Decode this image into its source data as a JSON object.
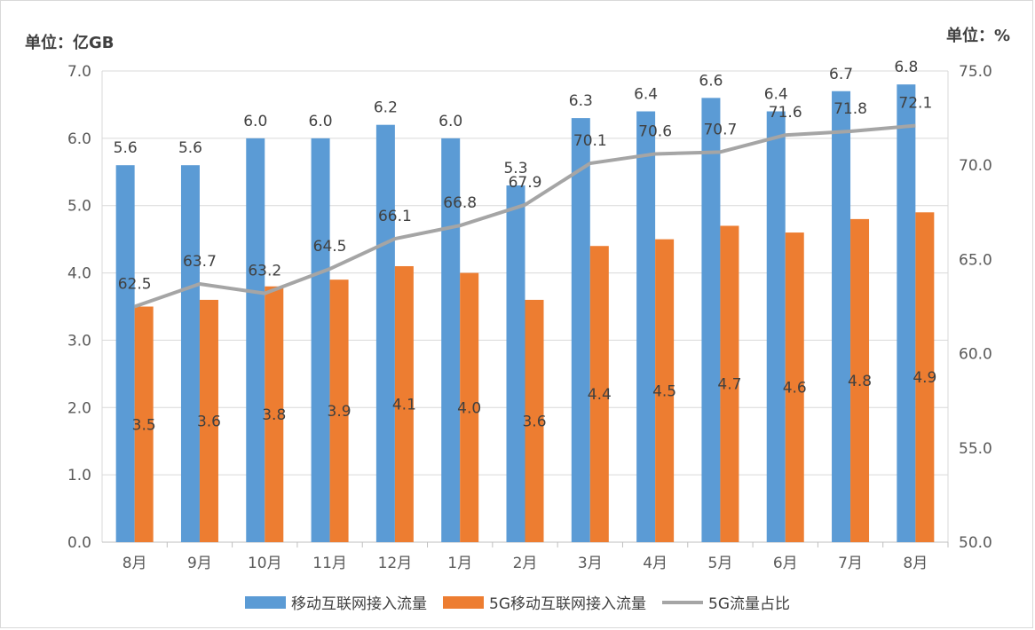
{
  "chart_data": {
    "type": "bar",
    "left_unit": "单位：亿GB",
    "right_unit": "单位：%",
    "categories": [
      "8月",
      "9月",
      "10月",
      "11月",
      "12月",
      "1月",
      "2月",
      "3月",
      "4月",
      "5月",
      "6月",
      "7月",
      "8月"
    ],
    "series": [
      {
        "name": "移动互联网接入流量",
        "kind": "bar",
        "axis": "left",
        "color": "#5b9bd5",
        "values": [
          5.6,
          5.6,
          6.0,
          6.0,
          6.2,
          6.0,
          5.3,
          6.3,
          6.4,
          6.6,
          6.4,
          6.7,
          6.8
        ],
        "labels": [
          "5.6",
          "5.6",
          "6.0",
          "6.0",
          "6.2",
          "6.0",
          "5.3",
          "6.3",
          "6.4",
          "6.6",
          "6.4",
          "6.7",
          "6.8"
        ]
      },
      {
        "name": "5G移动互联网接入流量",
        "kind": "bar",
        "axis": "left",
        "color": "#ed7d31",
        "values": [
          3.5,
          3.6,
          3.8,
          3.9,
          4.1,
          4.0,
          3.6,
          4.4,
          4.5,
          4.7,
          4.6,
          4.8,
          4.9
        ],
        "labels": [
          "3.5",
          "3.6",
          "3.8",
          "3.9",
          "4.1",
          "4.0",
          "3.6",
          "4.4",
          "4.5",
          "4.7",
          "4.6",
          "4.8",
          "4.9"
        ]
      },
      {
        "name": "5G流量占比",
        "kind": "line",
        "axis": "right",
        "color": "#a5a5a5",
        "values": [
          62.5,
          63.7,
          63.2,
          64.5,
          66.1,
          66.8,
          67.9,
          70.1,
          70.6,
          70.7,
          71.6,
          71.8,
          72.1
        ],
        "labels": [
          "62.5",
          "63.7",
          "63.2",
          "64.5",
          "66.1",
          "66.8",
          "67.9",
          "70.1",
          "70.6",
          "70.7",
          "71.6",
          "71.8",
          "72.1"
        ]
      }
    ],
    "y_left": {
      "lim": [
        0,
        7
      ],
      "ticks": [
        "0.0",
        "1.0",
        "2.0",
        "3.0",
        "4.0",
        "5.0",
        "6.0",
        "7.0"
      ]
    },
    "y_right": {
      "lim": [
        50,
        75
      ],
      "ticks": [
        "50.0",
        "55.0",
        "60.0",
        "65.0",
        "70.0",
        "75.0"
      ]
    },
    "grid": true,
    "legend_position": "bottom"
  }
}
